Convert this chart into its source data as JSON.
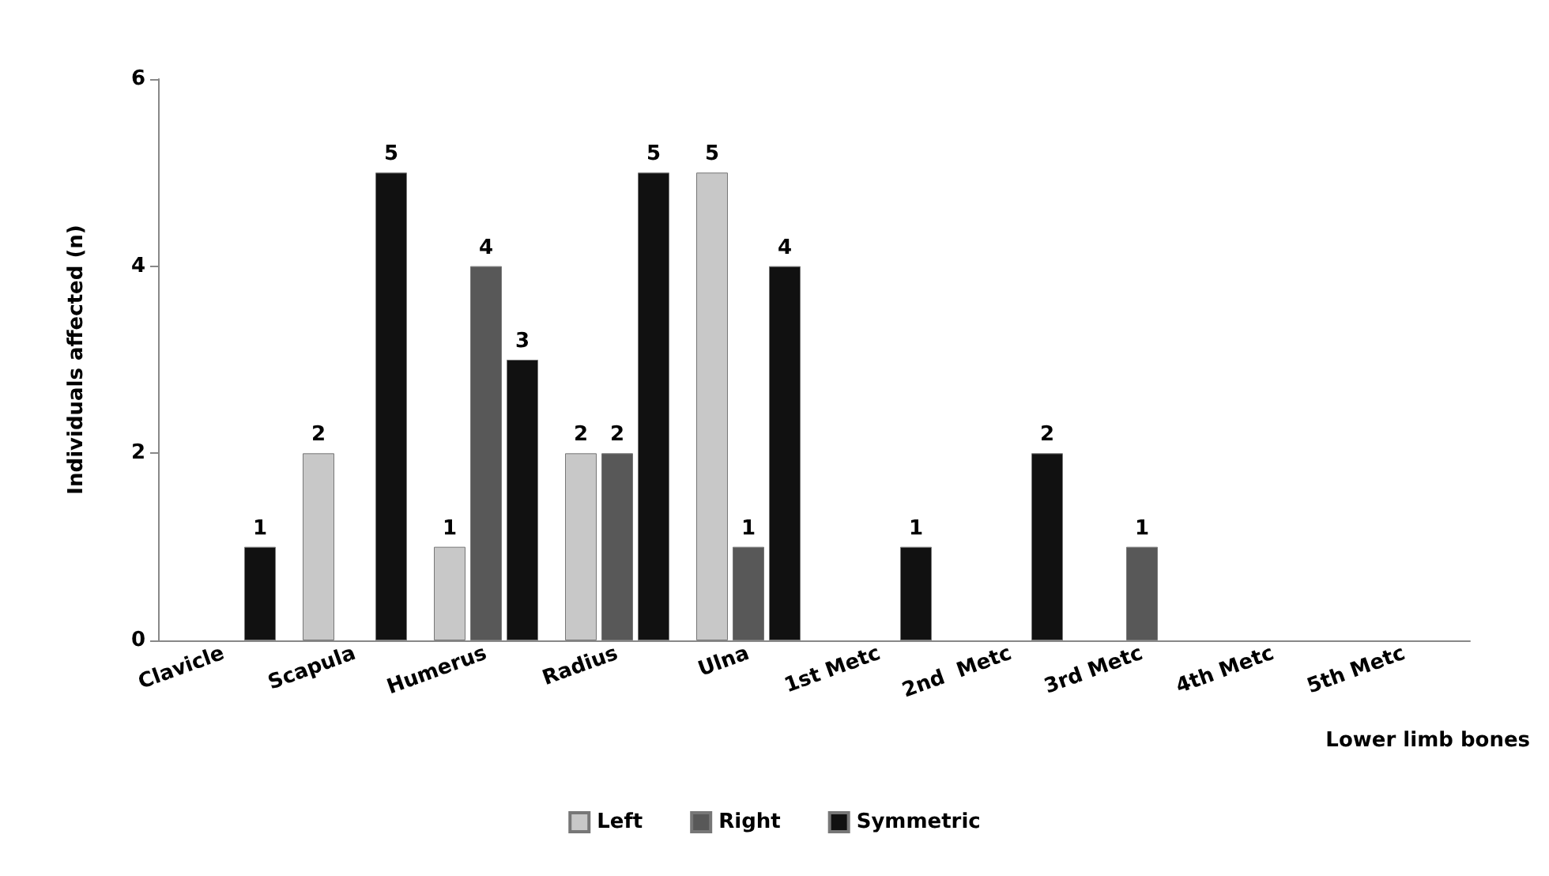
{
  "chart_data": {
    "type": "bar",
    "xlabel": "Lower limb bones",
    "ylabel": "Individuals affected (n)",
    "categories": [
      "Clavicle",
      "Scapula",
      "Humerus",
      "Radius",
      "Ulna",
      "1st Metc",
      "2nd  Metc",
      "3rd Metc",
      "4th Metc",
      "5th Metc"
    ],
    "series": [
      {
        "name": "Left",
        "color": "#c8c8c8",
        "values": [
          0,
          2,
          1,
          2,
          5,
          0,
          0,
          0,
          0,
          0
        ],
        "value_labels": [
          null,
          "2",
          "1",
          "2",
          "5",
          null,
          null,
          null,
          null,
          null
        ]
      },
      {
        "name": "Right",
        "color": "#585858",
        "values": [
          0,
          0,
          4,
          2,
          1,
          0,
          0,
          1,
          0,
          0
        ],
        "value_labels": [
          null,
          null,
          "4",
          "2",
          "1",
          null,
          null,
          "1",
          null,
          null
        ]
      },
      {
        "name": "Symmetric",
        "color": "#111111",
        "values": [
          1,
          5,
          3,
          5,
          4,
          1,
          2,
          0,
          0,
          0
        ],
        "value_labels": [
          "1",
          "5",
          "3",
          "5",
          "4",
          "1",
          "2",
          null,
          null,
          null
        ]
      }
    ],
    "ylim": [
      0,
      6
    ],
    "yticks": [
      0,
      2,
      4,
      6
    ],
    "grid": false,
    "legend": "bottom"
  }
}
